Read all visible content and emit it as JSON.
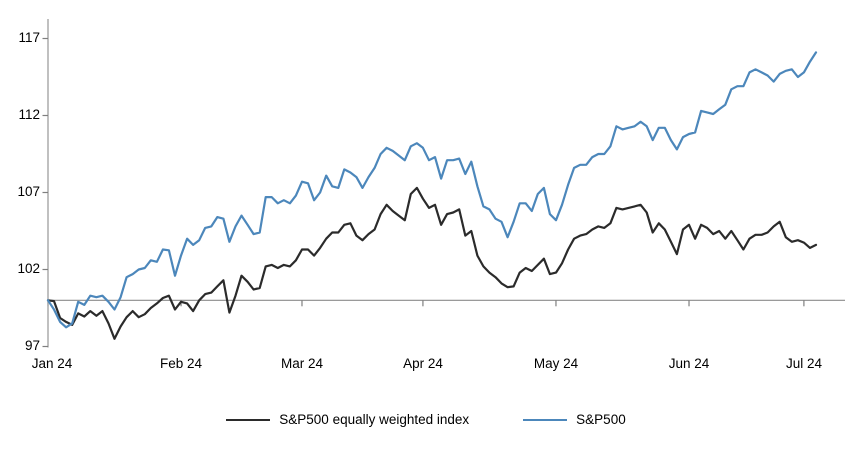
{
  "chart_data": {
    "type": "line",
    "title": "",
    "xlabel": "",
    "ylabel": "",
    "grid": false,
    "legend_position": "bottom",
    "baseline_value": 100,
    "x_axis": {
      "tick_labels": [
        "Jan 24",
        "Feb 24",
        "Mar 24",
        "Apr 24",
        "May 24",
        "Jun 24",
        "Jul 24"
      ],
      "tick_indices": [
        0,
        22,
        42,
        62,
        84,
        106,
        125
      ]
    },
    "y_axis": {
      "ticks": [
        97,
        102,
        107,
        112,
        117
      ],
      "tick_labels": [
        "97",
        "102",
        "107",
        "112",
        "117"
      ],
      "min": 97,
      "max": 118.5
    },
    "series": [
      {
        "name": "S&P500 equally weighted index",
        "color": "#2b2b2b",
        "values": [
          100.0,
          99.95,
          98.85,
          98.6,
          98.4,
          99.15,
          98.95,
          99.3,
          99.0,
          99.3,
          98.5,
          97.5,
          98.3,
          98.9,
          99.3,
          98.9,
          99.1,
          99.5,
          99.8,
          100.15,
          100.3,
          99.4,
          99.9,
          99.8,
          99.3,
          100.0,
          100.4,
          100.5,
          100.9,
          101.3,
          99.2,
          100.3,
          101.6,
          101.2,
          100.7,
          100.8,
          102.2,
          102.3,
          102.1,
          102.3,
          102.2,
          102.6,
          103.3,
          103.3,
          102.9,
          103.4,
          104.0,
          104.4,
          104.4,
          104.9,
          105.0,
          104.2,
          103.9,
          104.3,
          104.6,
          105.6,
          106.2,
          105.8,
          105.5,
          105.2,
          106.9,
          107.3,
          106.6,
          106.0,
          106.2,
          104.9,
          105.6,
          105.7,
          105.9,
          104.2,
          104.5,
          102.9,
          102.2,
          101.8,
          101.5,
          101.1,
          100.85,
          100.9,
          101.8,
          102.1,
          101.9,
          102.3,
          102.7,
          101.7,
          101.8,
          102.4,
          103.3,
          104.0,
          104.2,
          104.3,
          104.6,
          104.8,
          104.7,
          105.0,
          106.0,
          105.9,
          106.0,
          106.1,
          106.2,
          105.7,
          104.4,
          105.0,
          104.6,
          103.8,
          103.0,
          104.6,
          104.9,
          104.0,
          104.9,
          104.7,
          104.3,
          104.5,
          104.0,
          104.5,
          103.9,
          103.3,
          104.0,
          104.25,
          104.25,
          104.4,
          104.8,
          105.1,
          104.1,
          103.8,
          103.9,
          103.75,
          103.4,
          103.6
        ]
      },
      {
        "name": "S&P500",
        "color": "#4c87bb",
        "values": [
          100.0,
          99.4,
          98.6,
          98.25,
          98.5,
          99.9,
          99.7,
          100.3,
          100.2,
          100.3,
          99.9,
          99.4,
          100.2,
          101.5,
          101.7,
          102.0,
          102.1,
          102.6,
          102.5,
          103.3,
          103.25,
          101.6,
          102.9,
          104.0,
          103.6,
          103.9,
          104.7,
          104.8,
          105.4,
          105.3,
          103.8,
          104.8,
          105.5,
          104.9,
          104.3,
          104.4,
          106.7,
          106.7,
          106.3,
          106.5,
          106.3,
          106.8,
          107.7,
          107.6,
          106.5,
          107.0,
          108.1,
          107.4,
          107.3,
          108.5,
          108.3,
          108.0,
          107.3,
          108.0,
          108.6,
          109.5,
          109.9,
          109.7,
          109.4,
          109.1,
          110.0,
          110.2,
          109.9,
          109.1,
          109.3,
          107.9,
          109.1,
          109.1,
          109.2,
          108.2,
          109.0,
          107.4,
          106.1,
          105.9,
          105.3,
          105.1,
          104.1,
          105.1,
          106.3,
          106.3,
          105.8,
          106.9,
          107.3,
          105.6,
          105.2,
          106.2,
          107.5,
          108.6,
          108.8,
          108.8,
          109.3,
          109.5,
          109.5,
          110.0,
          111.3,
          111.1,
          111.2,
          111.3,
          111.6,
          111.3,
          110.4,
          111.2,
          111.2,
          110.4,
          109.8,
          110.6,
          110.8,
          110.9,
          112.3,
          112.2,
          112.1,
          112.4,
          112.7,
          113.7,
          113.9,
          113.9,
          114.8,
          115.0,
          114.8,
          114.6,
          114.2,
          114.7,
          114.9,
          115.0,
          114.5,
          114.8,
          115.5,
          116.1
        ]
      }
    ]
  },
  "colors": {
    "axis_line": "#a6a6a6",
    "tick_mark": "#7f7f7f",
    "baseline": "#8c8c8c",
    "equal_weight_line": "#2b2b2b",
    "sp500_line": "#4c87bb"
  }
}
